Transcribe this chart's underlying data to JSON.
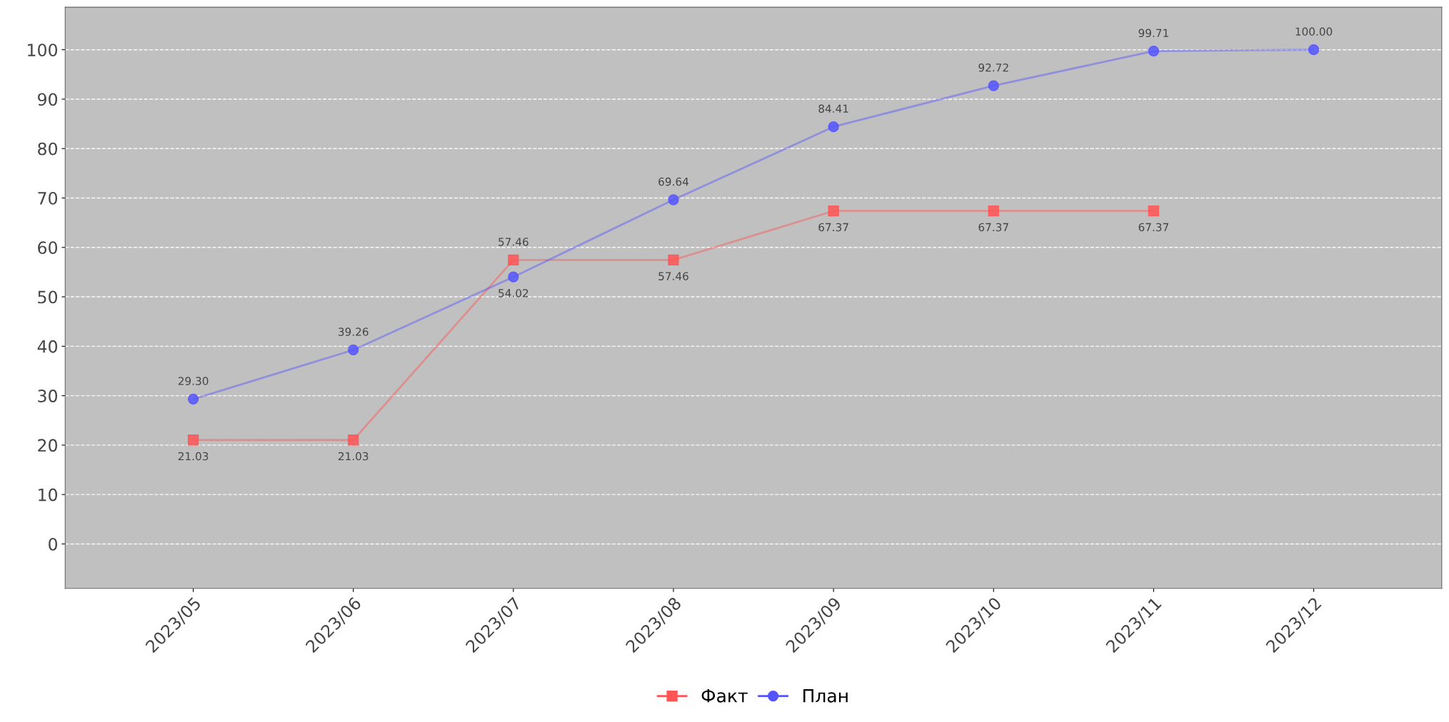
{
  "chart_data": {
    "type": "line",
    "categories": [
      "2023/05",
      "2023/06",
      "2023/07",
      "2023/08",
      "2023/09",
      "2023/10",
      "2023/11",
      "2023/12"
    ],
    "series": [
      {
        "name": "Факт",
        "color": "#ff5555",
        "marker": "square",
        "values": [
          21.03,
          21.03,
          57.46,
          57.46,
          67.37,
          67.37,
          67.37,
          null
        ],
        "value_labels": [
          "21.03",
          "21.03",
          "57.46",
          "57.46",
          "67.37",
          "67.37",
          "67.37",
          null
        ]
      },
      {
        "name": "План",
        "color": "#5555ff",
        "marker": "circle",
        "values": [
          29.3,
          39.26,
          54.02,
          69.64,
          84.41,
          92.72,
          99.71,
          100.0
        ],
        "value_labels": [
          "29.30",
          "39.26",
          "54.02",
          "69.64",
          "84.41",
          "92.72",
          "99.71",
          "100.00"
        ]
      }
    ],
    "ylim": [
      -9,
      108.6
    ],
    "yticks": [
      0,
      10,
      20,
      30,
      40,
      50,
      60,
      70,
      80,
      90,
      100
    ],
    "grid": "y",
    "legend": "bottom",
    "line_style": "solid"
  }
}
